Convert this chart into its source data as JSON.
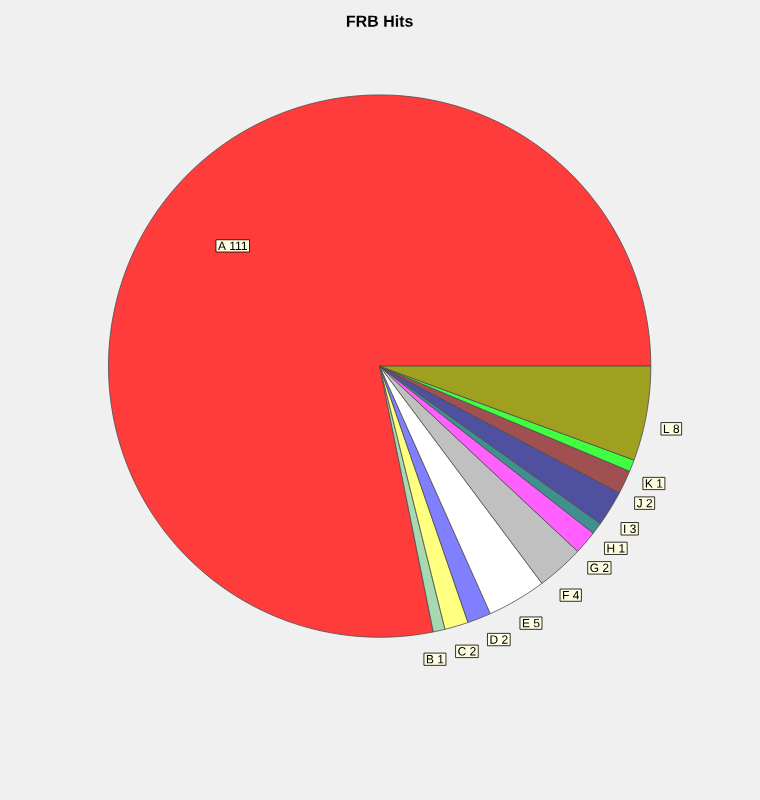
{
  "chart_data": {
    "type": "pie",
    "title": "FRB Hits",
    "categories": [
      "A",
      "B",
      "C",
      "D",
      "E",
      "F",
      "G",
      "H",
      "I",
      "J",
      "K",
      "L"
    ],
    "values": [
      111,
      1,
      2,
      2,
      5,
      4,
      2,
      1,
      3,
      2,
      1,
      8
    ],
    "colors": [
      "#ff3c3c",
      "#a8d8b0",
      "#ffff80",
      "#8080ff",
      "#ffffff",
      "#c0c0c0",
      "#ff60ff",
      "#409090",
      "#5050a0",
      "#a05050",
      "#40ff40",
      "#a0a020"
    ],
    "data_labels": true
  }
}
